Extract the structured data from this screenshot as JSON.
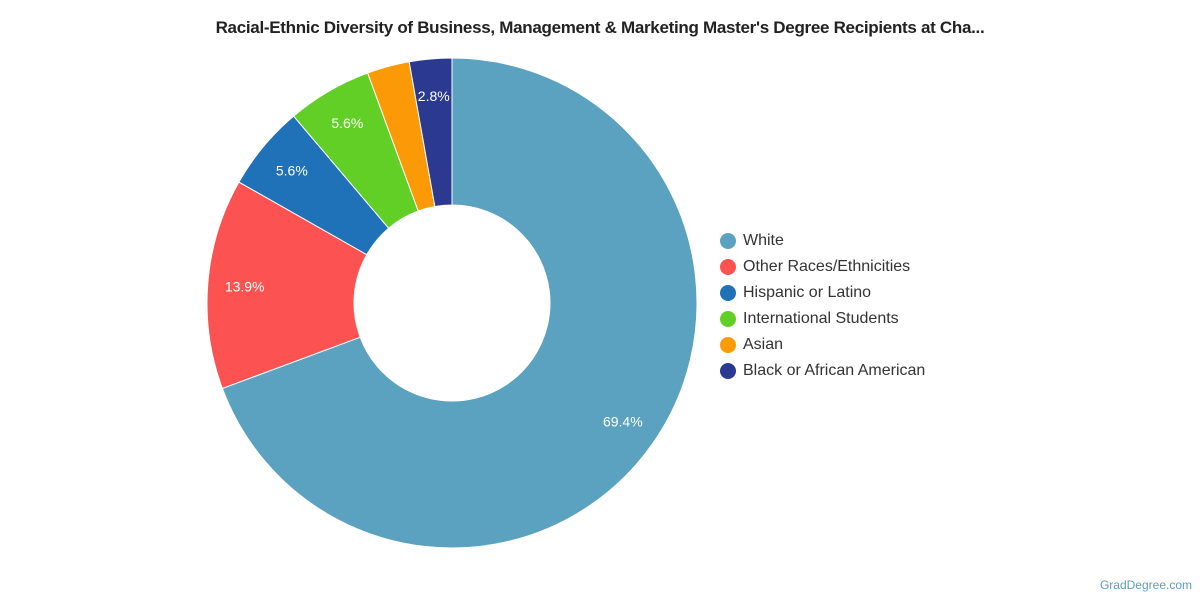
{
  "chart_data": {
    "type": "pie",
    "subtype": "donut",
    "title": "Racial-Ethnic Diversity of Business, Management & Marketing Master's Degree Recipients at Cha...",
    "categories": [
      "White",
      "Other Races/Ethnicities",
      "Hispanic or Latino",
      "International Students",
      "Asian",
      "Black or African American"
    ],
    "values": [
      69.4,
      13.9,
      5.6,
      5.6,
      2.8,
      2.8
    ],
    "labels": [
      "69.4%",
      "13.9%",
      "5.6%",
      "5.6%",
      "",
      "2.8%"
    ],
    "colors": [
      "#5ba2c0",
      "#fc5252",
      "#1f72b8",
      "#62cf27",
      "#fb9a06",
      "#2b3990"
    ],
    "legend_position": "right"
  },
  "credit": "GradDegree.com"
}
